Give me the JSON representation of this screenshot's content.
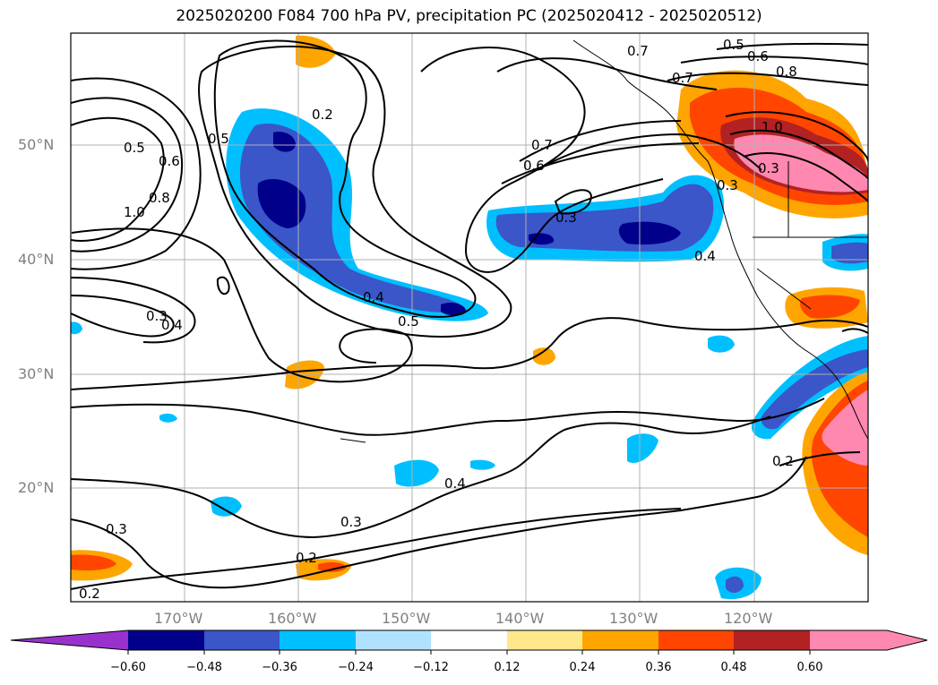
{
  "title": "2025020200 F084 700 hPa PV, precipitation PC (2025020412 - 2025020512)",
  "lat_ticks": [
    "50°N",
    "40°N",
    "30°N",
    "20°N"
  ],
  "lon_ticks": [
    "170°W",
    "160°W",
    "150°W",
    "140°W",
    "130°W",
    "120°W"
  ],
  "contour_labels": [
    "0.5",
    "0.2",
    "0.7",
    "0.6",
    "0.8",
    "0.5",
    "0.6",
    "0.7",
    "0.6",
    "0.7",
    "0.8",
    "1.0",
    "0.3",
    "0.3",
    "1.0",
    "0.5",
    "0.4",
    "0.4",
    "0.3",
    "0.5",
    "0.4",
    "0.3",
    "0.2",
    "0.4",
    "0.3",
    "0.2",
    "0.3",
    "0.2"
  ],
  "colorbar": {
    "ticks": [
      "−0.60",
      "−0.48",
      "−0.36",
      "−0.24",
      "−0.12",
      "0.12",
      "0.24",
      "0.36",
      "0.48",
      "0.60"
    ],
    "colors": [
      "#9932cc",
      "#00008b",
      "#3a56c8",
      "#00bfff",
      "#b0e2ff",
      "#ffffff",
      "#ffe88a",
      "#ffa500",
      "#ff4500",
      "#b22222",
      "#ff88b0"
    ]
  }
}
